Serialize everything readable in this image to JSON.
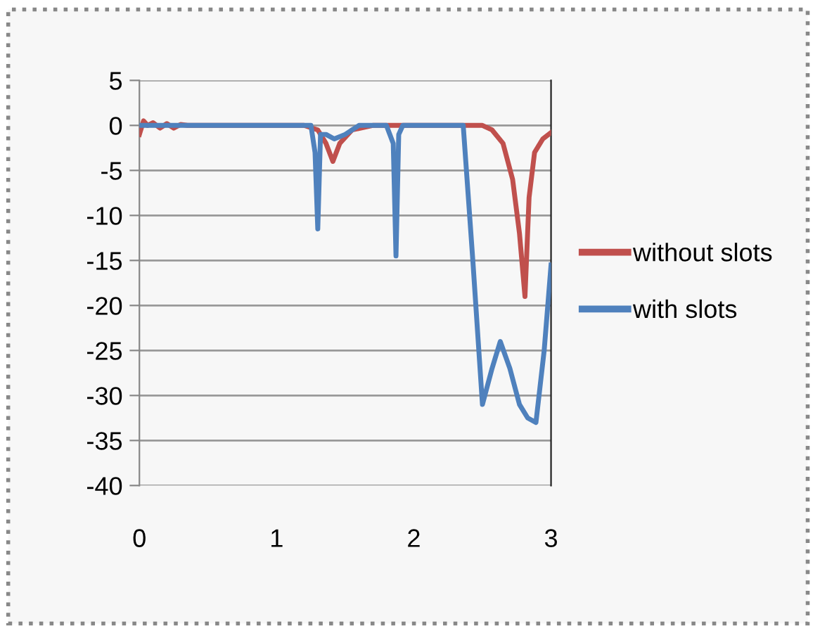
{
  "chart_data": {
    "type": "line",
    "xlim": [
      0,
      3
    ],
    "xticks": [
      0,
      1,
      2,
      3
    ],
    "ylim": [
      -40,
      5
    ],
    "yticks": [
      5,
      0,
      -5,
      -10,
      -15,
      -20,
      -25,
      -30,
      -35,
      -40
    ],
    "grid": "y",
    "legend": "right",
    "marker": "none",
    "line_style": "solid",
    "series": [
      {
        "name": "without slots",
        "color": "#c0504d",
        "x": [
          0,
          0.03,
          0.06,
          0.1,
          0.15,
          0.2,
          0.25,
          0.3,
          0.35,
          0.4,
          0.5,
          1.0,
          1.2,
          1.3,
          1.36,
          1.41,
          1.46,
          1.55,
          1.7,
          2.0,
          2.4,
          2.5,
          2.57,
          2.65,
          2.72,
          2.77,
          2.81,
          2.84,
          2.88,
          2.94,
          3.0
        ],
        "values": [
          -1,
          0.5,
          0,
          0.3,
          -0.3,
          0.2,
          -0.3,
          0.1,
          0,
          0,
          0,
          0,
          0,
          -0.5,
          -2,
          -4,
          -2,
          -0.5,
          0,
          0,
          0,
          0,
          -0.5,
          -2,
          -6,
          -12,
          -19,
          -8,
          -3,
          -1.5,
          -0.8
        ]
      },
      {
        "name": "with slots",
        "color": "#4f81bd",
        "x": [
          0,
          0.5,
          1.0,
          1.25,
          1.28,
          1.3,
          1.32,
          1.36,
          1.42,
          1.5,
          1.6,
          1.8,
          1.85,
          1.87,
          1.89,
          1.92,
          2.0,
          2.2,
          2.36,
          2.43,
          2.5,
          2.57,
          2.63,
          2.7,
          2.77,
          2.83,
          2.89,
          2.95,
          3.0
        ],
        "values": [
          0,
          0,
          0,
          0,
          -3,
          -11.5,
          -1,
          -1,
          -1.5,
          -1,
          0,
          0,
          -2,
          -14.5,
          -1,
          0,
          0,
          0,
          0,
          -15,
          -31,
          -27,
          -24,
          -27,
          -31,
          -32.5,
          -33,
          -25,
          -15.5
        ]
      }
    ]
  }
}
